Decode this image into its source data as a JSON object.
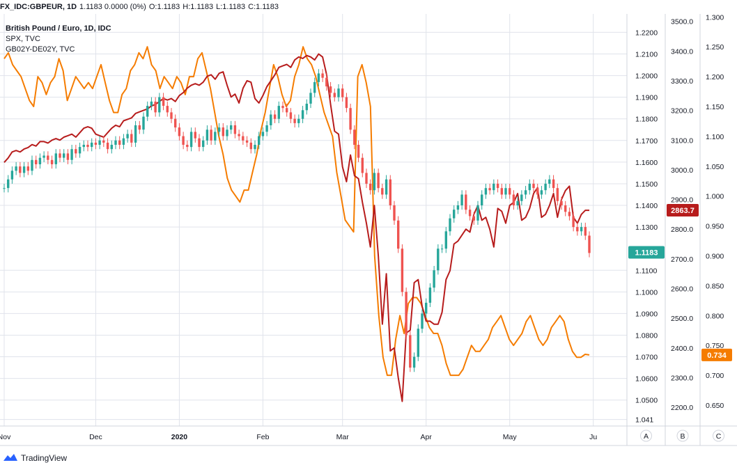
{
  "header": {
    "symbol": "FX_IDC:GBPEUR, 1D",
    "change": "1.1183 0.0000 (0%)",
    "open": "O:1.1183",
    "high": "H:1.1183",
    "low": "L:1.1183",
    "close": "C:1.1183"
  },
  "legend": {
    "main": "British Pound / Euro, 1D, IDC",
    "second": "SPX, TVC",
    "third": "GB02Y-DE02Y, TVC"
  },
  "footer": {
    "brand": "TradingView"
  },
  "colors": {
    "up": "#26a69a",
    "down": "#ef5350",
    "spx": "#b71c1c",
    "spread": "#f57c00",
    "grid": "#e0e3eb",
    "last_badge": "#26a69a",
    "spx_badge": "#b71c1c",
    "spread_badge": "#f57c00"
  },
  "chart_data": {
    "type": "line",
    "x_axis": {
      "labels": [
        "Nov",
        "Dec",
        "2020",
        "Feb",
        "Mar",
        "Apr",
        "May",
        "Ju"
      ],
      "month_index": [
        0,
        23,
        44,
        65,
        85,
        106,
        127,
        148
      ]
    },
    "scale_labels": [
      "A",
      "B",
      "C"
    ],
    "axes": {
      "A": {
        "name": "British Pound / Euro",
        "ticks": [
          1.22,
          1.21,
          1.2,
          1.19,
          1.18,
          1.17,
          1.16,
          1.15,
          1.14,
          1.13,
          1.11,
          1.1,
          1.09,
          1.08,
          1.07,
          1.06,
          1.05,
          1.041
        ],
        "range": [
          1.038,
          1.2285
        ]
      },
      "B": {
        "name": "SPX",
        "ticks": [
          3500.0,
          3400.0,
          3300.0,
          3200.0,
          3100.0,
          3000.0,
          2900.0,
          2800.0,
          2700.0,
          2600.0,
          2500.0,
          2400.0,
          2300.0,
          2200.0
        ],
        "range": [
          2137,
          3525
        ]
      },
      "C": {
        "name": "GB02Y-DE02Y",
        "ticks": [
          1.3,
          1.25,
          1.2,
          1.15,
          1.1,
          1.05,
          1.0,
          0.95,
          0.9,
          0.85,
          0.8,
          0.75,
          0.7,
          0.65
        ],
        "range": [
          0.615,
          1.305
        ]
      }
    },
    "last_values": {
      "A": "1.1183",
      "B": "2863.7",
      "C": "0.734"
    },
    "series": [
      {
        "name": "British Pound / Euro",
        "style": "candlestick",
        "closes": [
          1.148,
          1.152,
          1.156,
          1.158,
          1.155,
          1.158,
          1.156,
          1.161,
          1.159,
          1.162,
          1.163,
          1.161,
          1.159,
          1.164,
          1.162,
          1.164,
          1.161,
          1.166,
          1.164,
          1.167,
          1.168,
          1.167,
          1.169,
          1.168,
          1.17,
          1.169,
          1.166,
          1.168,
          1.17,
          1.168,
          1.171,
          1.173,
          1.169,
          1.177,
          1.175,
          1.181,
          1.186,
          1.188,
          1.183,
          1.19,
          1.186,
          1.183,
          1.18,
          1.176,
          1.172,
          1.168,
          1.167,
          1.174,
          1.171,
          1.167,
          1.17,
          1.175,
          1.17,
          1.174,
          1.176,
          1.172,
          1.175,
          1.177,
          1.173,
          1.172,
          1.17,
          1.169,
          1.166,
          1.168,
          1.172,
          1.174,
          1.177,
          1.182,
          1.18,
          1.186,
          1.185,
          1.183,
          1.18,
          1.178,
          1.18,
          1.184,
          1.187,
          1.192,
          1.197,
          1.201,
          1.199,
          1.195,
          1.192,
          1.19,
          1.194,
          1.19,
          1.185,
          1.175,
          1.168,
          1.162,
          1.155,
          1.15,
          1.147,
          1.155,
          1.148,
          1.145,
          1.152,
          1.14,
          1.133,
          1.12,
          1.1,
          1.08,
          1.065,
          1.07,
          1.083,
          1.09,
          1.095,
          1.102,
          1.11,
          1.12,
          1.12,
          1.128,
          1.134,
          1.138,
          1.14,
          1.145,
          1.138,
          1.135,
          1.133,
          1.14,
          1.145,
          1.148,
          1.147,
          1.15,
          1.148,
          1.145,
          1.148,
          1.145,
          1.14,
          1.142,
          1.145,
          1.147,
          1.15,
          1.148,
          1.145,
          1.147,
          1.15,
          1.152,
          1.148,
          1.142,
          1.14,
          1.137,
          1.135,
          1.13,
          1.128,
          1.13,
          1.126,
          1.118
        ]
      },
      {
        "name": "SPX",
        "values": [
          3025,
          3040,
          3060,
          3065,
          3060,
          3070,
          3075,
          3085,
          3080,
          3095,
          3095,
          3090,
          3100,
          3105,
          3100,
          3110,
          3115,
          3120,
          3110,
          3125,
          3140,
          3145,
          3140,
          3120,
          3115,
          3110,
          3125,
          3140,
          3150,
          3145,
          3165,
          3170,
          3175,
          3190,
          3195,
          3200,
          3205,
          3215,
          3220,
          3230,
          3240,
          3235,
          3240,
          3230,
          3250,
          3260,
          3275,
          3285,
          3290,
          3285,
          3295,
          3315,
          3320,
          3305,
          3325,
          3330,
          3285,
          3245,
          3255,
          3225,
          3275,
          3300,
          3295,
          3240,
          3225,
          3250,
          3280,
          3300,
          3320,
          3345,
          3350,
          3355,
          3345,
          3370,
          3380,
          3375,
          3385,
          3380,
          3370,
          3390,
          3380,
          3320,
          3220,
          3130,
          3120,
          3010,
          2960,
          3050,
          2980,
          2970,
          2890,
          2820,
          2740,
          2880,
          2710,
          2480,
          2650,
          2390,
          2400,
          2300,
          2220,
          2450,
          2460,
          2620,
          2630,
          2540,
          2490,
          2490,
          2480,
          2480,
          2520,
          2630,
          2660,
          2750,
          2760,
          2780,
          2800,
          2790,
          2850,
          2880,
          2830,
          2840,
          2800,
          2740,
          2870,
          2860,
          2820,
          2880,
          2890,
          2920,
          2830,
          2840,
          2870,
          2920,
          2940,
          2840,
          2850,
          2880,
          2920,
          2840,
          2900,
          2930,
          2945,
          2840,
          2820,
          2850,
          2863.7,
          2863.7
        ]
      },
      {
        "name": "GB02Y-DE02Y",
        "values": [
          1.23,
          1.24,
          1.22,
          1.21,
          1.2,
          1.18,
          1.16,
          1.15,
          1.2,
          1.19,
          1.17,
          1.19,
          1.2,
          1.23,
          1.21,
          1.16,
          1.18,
          1.2,
          1.19,
          1.18,
          1.19,
          1.18,
          1.2,
          1.22,
          1.19,
          1.16,
          1.14,
          1.14,
          1.17,
          1.18,
          1.21,
          1.22,
          1.24,
          1.23,
          1.25,
          1.22,
          1.21,
          1.18,
          1.2,
          1.19,
          1.18,
          1.2,
          1.19,
          1.17,
          1.2,
          1.2,
          1.23,
          1.24,
          1.21,
          1.18,
          1.14,
          1.1,
          1.07,
          1.03,
          1.01,
          1.0,
          0.99,
          1.01,
          1.01,
          1.04,
          1.07,
          1.11,
          1.14,
          1.18,
          1.22,
          1.2,
          1.17,
          1.15,
          1.16,
          1.2,
          1.22,
          1.25,
          1.23,
          1.22,
          1.2,
          1.17,
          1.14,
          1.12,
          1.1,
          1.04,
          1.0,
          0.96,
          0.95,
          0.94,
          1.2,
          1.22,
          1.19,
          1.15,
          0.9,
          0.8,
          0.73,
          0.7,
          0.7,
          0.76,
          0.8,
          0.77,
          0.82,
          0.83,
          0.83,
          0.82,
          0.8,
          0.78,
          0.77,
          0.77,
          0.75,
          0.72,
          0.7,
          0.7,
          0.7,
          0.71,
          0.73,
          0.75,
          0.74,
          0.74,
          0.75,
          0.76,
          0.78,
          0.79,
          0.8,
          0.78,
          0.76,
          0.75,
          0.76,
          0.77,
          0.79,
          0.8,
          0.78,
          0.76,
          0.75,
          0.76,
          0.78,
          0.79,
          0.8,
          0.79,
          0.76,
          0.74,
          0.73,
          0.73,
          0.735,
          0.734
        ]
      }
    ]
  }
}
